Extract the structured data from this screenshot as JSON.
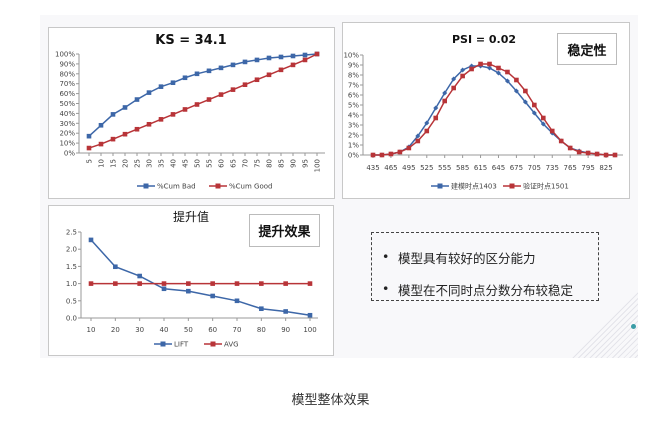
{
  "chart_data": [
    {
      "type": "line",
      "title": "KS = 34.1",
      "x": [
        5,
        10,
        15,
        20,
        25,
        30,
        35,
        40,
        45,
        50,
        55,
        60,
        65,
        70,
        75,
        80,
        85,
        90,
        95,
        100
      ],
      "ylim": [
        0,
        100
      ],
      "yticks": [
        "0%",
        "10%",
        "20%",
        "30%",
        "40%",
        "50%",
        "60%",
        "70%",
        "80%",
        "90%",
        "100%"
      ],
      "series": [
        {
          "name": "%Cum Bad",
          "color": "#3d67a8",
          "marker": "square",
          "values": [
            17,
            28,
            39,
            46,
            54,
            61,
            67,
            71,
            76,
            80,
            83,
            86,
            89,
            92,
            94,
            96,
            97,
            98,
            99,
            100
          ]
        },
        {
          "name": "%Cum Good",
          "color": "#b83438",
          "marker": "square",
          "values": [
            5,
            9,
            14,
            19,
            24,
            29,
            34,
            39,
            44,
            49,
            54,
            59,
            64,
            69,
            74,
            79,
            84,
            89,
            94,
            100
          ]
        }
      ],
      "legend": "bottom",
      "grid": false
    },
    {
      "type": "line",
      "title": "PSI = 0.02",
      "tag": "稳定性",
      "x": [
        435,
        450,
        465,
        480,
        495,
        510,
        525,
        540,
        555,
        570,
        585,
        600,
        615,
        630,
        645,
        660,
        675,
        690,
        705,
        720,
        735,
        750,
        765,
        780,
        795,
        810,
        825,
        840
      ],
      "xticks": [
        435,
        465,
        495,
        525,
        555,
        585,
        615,
        645,
        675,
        705,
        735,
        765,
        795,
        825
      ],
      "ylim": [
        0,
        10
      ],
      "yticks": [
        "0%",
        "1%",
        "2%",
        "3%",
        "4%",
        "5%",
        "6%",
        "7%",
        "8%",
        "9%",
        "10%"
      ],
      "series": [
        {
          "name": "建模时点1403",
          "color": "#3d67a8",
          "marker": "diamond",
          "values": [
            0,
            0,
            0.1,
            0.3,
            0.8,
            1.9,
            3.2,
            4.7,
            6.2,
            7.6,
            8.5,
            8.9,
            8.9,
            8.7,
            8.2,
            7.4,
            6.4,
            5.3,
            4.2,
            3.1,
            2.2,
            1.4,
            0.7,
            0.4,
            0.2,
            0.1,
            0,
            0
          ]
        },
        {
          "name": "验证时点1501",
          "color": "#b83438",
          "marker": "square",
          "values": [
            0,
            0,
            0.1,
            0.3,
            0.7,
            1.4,
            2.4,
            3.7,
            5.4,
            6.7,
            7.9,
            8.6,
            9.1,
            9.1,
            8.7,
            8.3,
            7.5,
            6.4,
            5.0,
            3.7,
            2.4,
            1.4,
            0.7,
            0.3,
            0.2,
            0.1,
            0,
            0
          ]
        }
      ],
      "legend": "bottom",
      "grid": false
    },
    {
      "type": "line",
      "title": "提升值",
      "tag": "提升效果",
      "x": [
        10,
        20,
        30,
        40,
        50,
        60,
        70,
        80,
        90,
        100
      ],
      "ylim": [
        0,
        2.5
      ],
      "yticks": [
        "0.0",
        "0.5",
        "1.0",
        "1.5",
        "2.0",
        "2.5"
      ],
      "series": [
        {
          "name": "LIFT",
          "color": "#3d67a8",
          "marker": "square",
          "values": [
            2.27,
            1.49,
            1.22,
            0.85,
            0.78,
            0.64,
            0.5,
            0.27,
            0.19,
            0.08
          ]
        },
        {
          "name": "AVG",
          "color": "#b83438",
          "marker": "square",
          "values": [
            1,
            1,
            1,
            1,
            1,
            1,
            1,
            1,
            1,
            1
          ]
        }
      ],
      "legend": "bottom",
      "grid": false
    }
  ],
  "notes": [
    "模型具有较好的区分能力",
    "模型在不同时点分数分布较稳定"
  ],
  "caption": "模型整体效果"
}
